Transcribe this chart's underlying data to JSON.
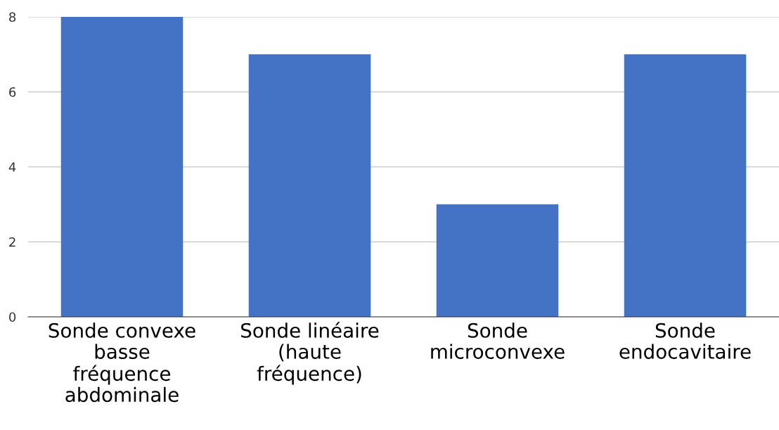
{
  "chart_data": {
    "type": "bar",
    "categories": [
      "Sonde convexe\nbasse\nfréquence\nabdominale",
      "Sonde linéaire\n(haute\nfréquence)",
      "Sonde\nmicroconvexe",
      "Sonde\nendocavitaire"
    ],
    "values": [
      8,
      7,
      3,
      7
    ],
    "color": "#4472c4",
    "ylim": [
      0,
      8
    ],
    "yticks": [
      0,
      2,
      4,
      6,
      8
    ],
    "grid": "y",
    "legend": false
  }
}
